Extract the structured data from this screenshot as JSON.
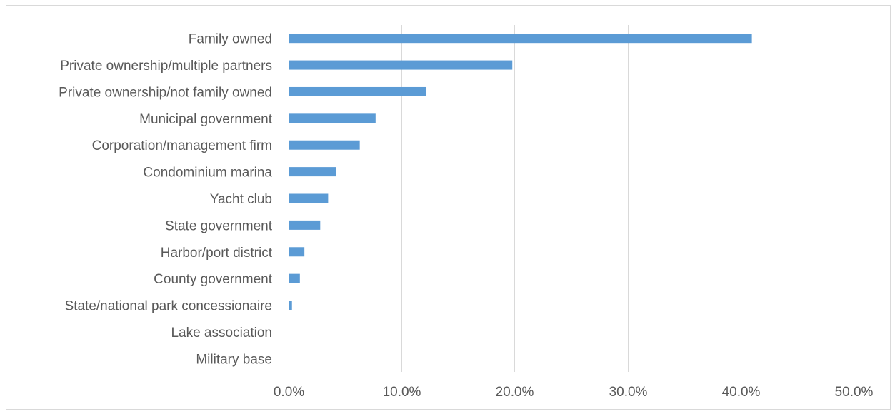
{
  "chart_data": {
    "type": "bar",
    "orientation": "horizontal",
    "categories": [
      "Family owned",
      "Private ownership/multiple partners",
      "Private ownership/not family owned",
      "Municipal government",
      "Corporation/management firm",
      "Condominium marina",
      "Yacht club",
      "State government",
      "Harbor/port district",
      "County government",
      "State/national park concessionaire",
      "Lake association",
      "Military base"
    ],
    "values": [
      41.0,
      19.8,
      12.2,
      7.7,
      6.3,
      4.2,
      3.5,
      2.8,
      1.4,
      1.0,
      0.3,
      0.0,
      0.0
    ],
    "xlim": [
      0,
      50
    ],
    "xticks": [
      "0.0%",
      "10.0%",
      "20.0%",
      "30.0%",
      "40.0%",
      "50.0%"
    ],
    "grid": true,
    "bar_color": "#5b9bd5",
    "grid_color": "#d9d9d9",
    "title": "",
    "xlabel": "",
    "ylabel": ""
  }
}
